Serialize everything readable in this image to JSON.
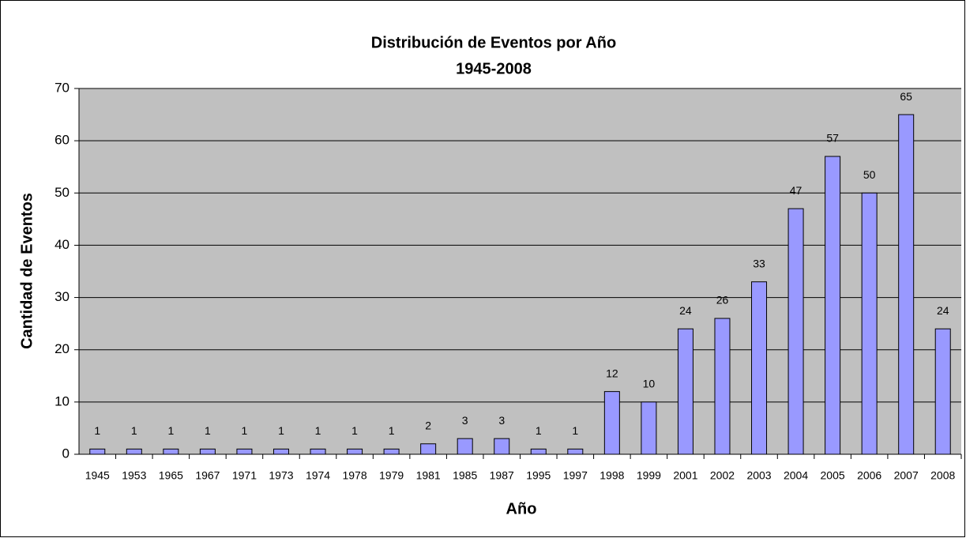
{
  "chart_data": {
    "type": "bar",
    "title": "Distribución de Eventos por Año",
    "subtitle": "1945-2008",
    "x_label": "Año",
    "y_label": "Cantidad de Eventos",
    "categories": [
      "1945",
      "1953",
      "1965",
      "1967",
      "1971",
      "1973",
      "1974",
      "1978",
      "1979",
      "1981",
      "1985",
      "1987",
      "1995",
      "1997",
      "1998",
      "1999",
      "2001",
      "2002",
      "2003",
      "2004",
      "2005",
      "2006",
      "2007",
      "2008"
    ],
    "values": [
      1,
      1,
      1,
      1,
      1,
      1,
      1,
      1,
      1,
      2,
      3,
      3,
      1,
      1,
      12,
      10,
      24,
      26,
      33,
      47,
      57,
      50,
      65,
      24
    ],
    "color": "#9999ff",
    "ylim": [
      0,
      70
    ],
    "yticks": [
      0,
      10,
      20,
      30,
      40,
      50,
      60,
      70
    ],
    "grid": true
  }
}
